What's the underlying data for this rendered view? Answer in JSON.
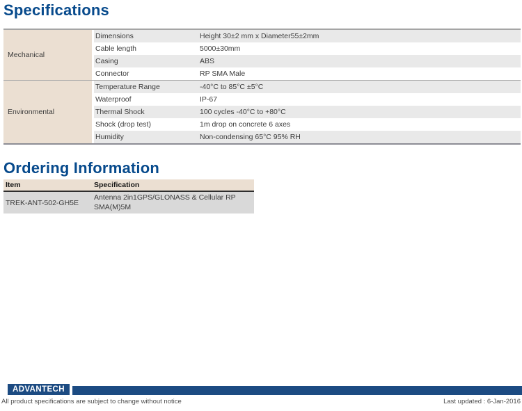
{
  "headings": {
    "specifications": "Specifications",
    "ordering": "Ordering Information"
  },
  "spec_table": {
    "sections": [
      {
        "category": "Mechanical",
        "rows": [
          {
            "label": "Dimensions",
            "value": "Height 30±2 mm x Diameter55±2mm"
          },
          {
            "label": "Cable length",
            "value": "5000±30mm"
          },
          {
            "label": "Casing",
            "value": "ABS"
          },
          {
            "label": "Connector",
            "value": "RP SMA Male"
          }
        ]
      },
      {
        "category": "Environmental",
        "rows": [
          {
            "label": "Temperature Range",
            "value": "-40°C to 85°C ±5°C"
          },
          {
            "label": "Waterproof",
            "value": "IP-67"
          },
          {
            "label": "Thermal Shock",
            "value": "100 cycles -40°C to +80°C"
          },
          {
            "label": "Shock (drop test)",
            "value": "1m drop on concrete 6 axes"
          },
          {
            "label": "Humidity",
            "value": "Non-condensing 65°C 95% RH"
          }
        ]
      }
    ]
  },
  "ordering_table": {
    "headers": [
      "Item",
      "Specification"
    ],
    "rows": [
      {
        "item": "TREK-ANT-502-GH5E",
        "specification": "Antenna 2in1GPS/GLONASS & Cellular RP SMA(M)5M"
      }
    ]
  },
  "footer": {
    "logo_text": "ADVANTECH",
    "disclaimer": "All product specifications are subject to change without notice",
    "last_updated": "Last updated : 6-Jan-2016"
  },
  "colors": {
    "heading_blue": "#074a8c",
    "logo_blue": "#1c4b82",
    "category_beige": "#ebdfd2",
    "row_gray": "#e9e9e9",
    "order_row_gray": "#d9d9d9"
  }
}
